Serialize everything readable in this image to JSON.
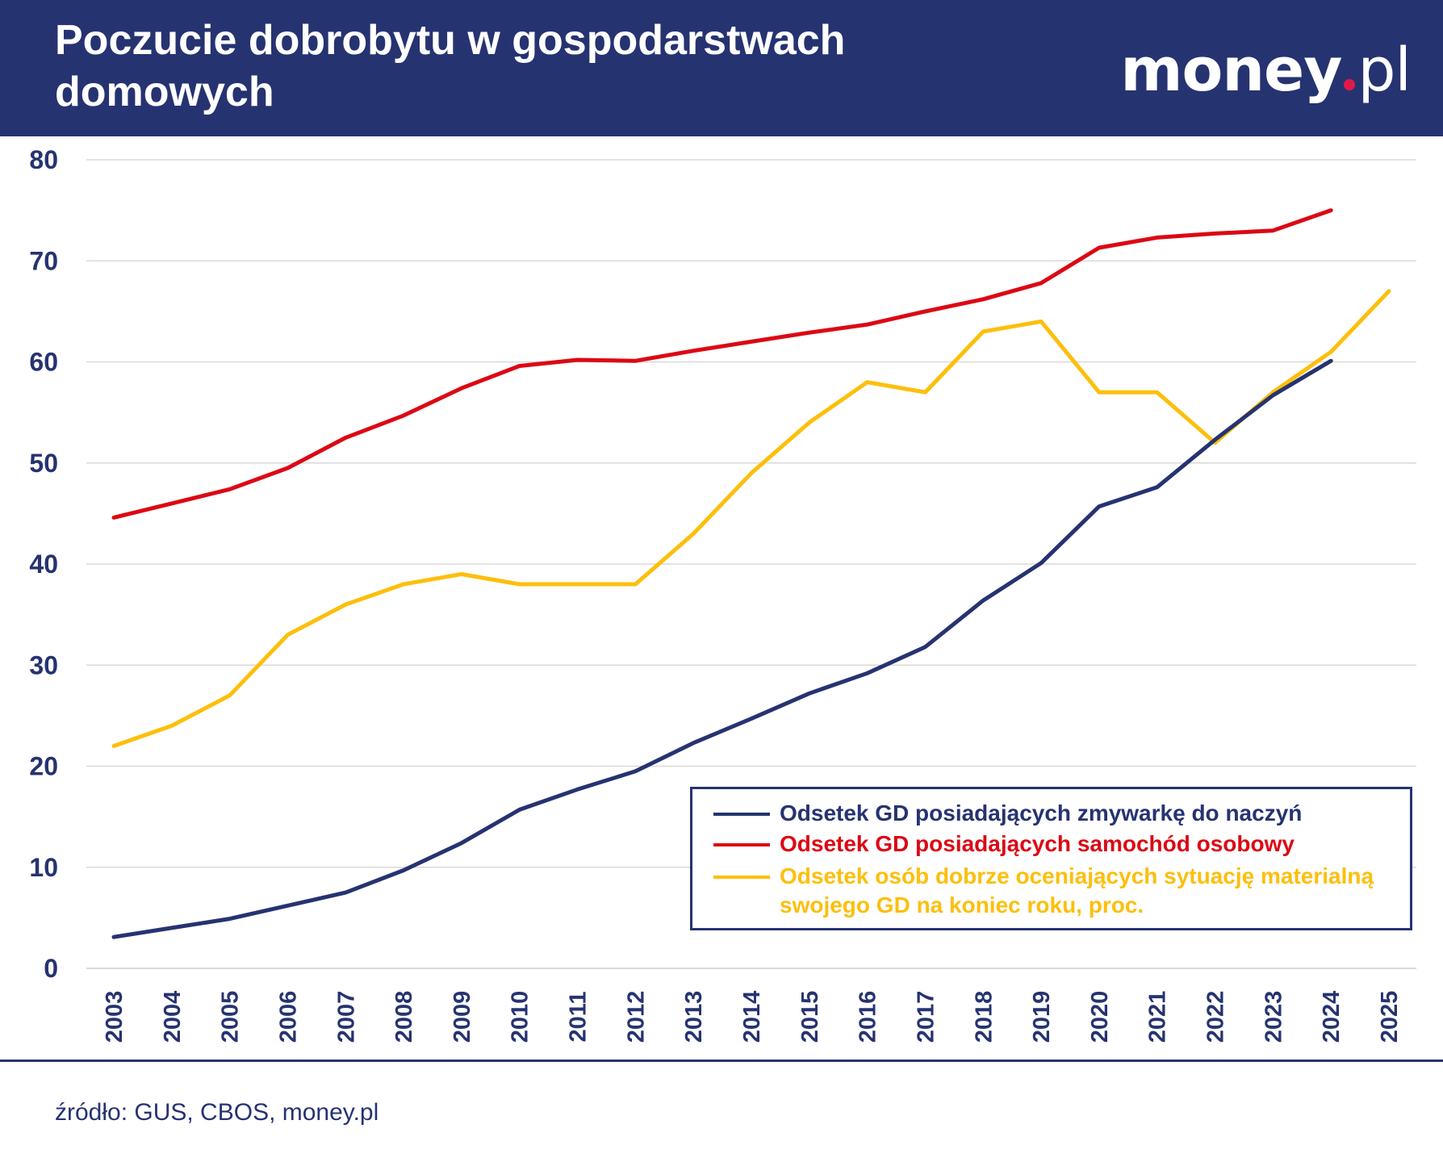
{
  "header": {
    "title": "Poczucie dobrobytu w gospodarstwach domowych",
    "logo": "money.pl"
  },
  "footer": {
    "source": "źródło: GUS, CBOS, money.pl"
  },
  "colors": {
    "header_bg": "#263371",
    "navy": "#263371",
    "red": "#dc0814",
    "yellow": "#fcbf0c",
    "grid": "#d9d9d9"
  },
  "chart_data": {
    "type": "line",
    "title": "Poczucie dobrobytu w gospodarstwach domowych",
    "xlabel": "",
    "ylabel": "",
    "ylim": [
      0,
      80
    ],
    "yticks": [
      0,
      10,
      20,
      30,
      40,
      50,
      60,
      70,
      80
    ],
    "grid": true,
    "legend_position": "bottom-right",
    "x": [
      "2003",
      "2004",
      "2005",
      "2006",
      "2007",
      "2008",
      "2009",
      "2010",
      "2011",
      "2012",
      "2013",
      "2014",
      "2015",
      "2016",
      "2017",
      "2018",
      "2019",
      "2020",
      "2021",
      "2022",
      "2023",
      "2024",
      "2025"
    ],
    "series": [
      {
        "name": "Odsetek GD posiadających zmywarkę do naczyń",
        "color": "#263371",
        "values": [
          3.1,
          4.0,
          4.9,
          6.2,
          7.5,
          9.7,
          12.4,
          15.7,
          17.7,
          19.5,
          22.3,
          24.7,
          27.2,
          29.2,
          31.8,
          36.4,
          40.1,
          45.7,
          47.6,
          52.3,
          56.7,
          60.1,
          null
        ]
      },
      {
        "name": "Odsetek GD posiadających samochód osobowy",
        "color": "#dc0814",
        "values": [
          44.6,
          46.0,
          47.4,
          49.5,
          52.5,
          54.7,
          57.4,
          59.6,
          60.2,
          60.1,
          61.1,
          62.0,
          62.9,
          63.7,
          65.0,
          66.2,
          67.8,
          71.3,
          72.3,
          72.7,
          73.0,
          75.0,
          null
        ]
      },
      {
        "name": "Odsetek osób dobrze oceniających sytuację materialną swojego GD na koniec roku, proc.",
        "color": "#fcbf0c",
        "values": [
          22,
          24,
          27,
          33,
          36,
          38,
          39,
          38,
          38,
          38,
          43,
          49,
          54,
          58,
          57,
          63,
          64,
          57,
          57,
          52,
          57,
          61,
          67
        ]
      }
    ]
  }
}
